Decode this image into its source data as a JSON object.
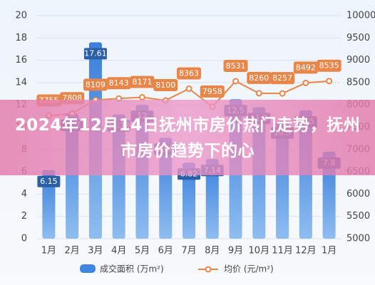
{
  "chart_data": {
    "type": "bar_line",
    "categories": [
      "1月",
      "2月",
      "3月",
      "4月",
      "5月",
      "6月",
      "7月",
      "8月",
      "9月",
      "10月",
      "11月",
      "12月",
      "1月"
    ],
    "series": [
      {
        "name": "成交面积 (万m²)",
        "color": "#3f86e0",
        "type": "bar",
        "values": [
          6.15,
          11.2,
          17.61,
          11.14,
          12,
          9.05,
          6.82,
          7.14,
          12.5,
          11.8,
          10.5,
          11.5,
          7.8
        ]
      },
      {
        "name": "均价 (元/m²)",
        "color": "#e8864a",
        "type": "line",
        "axis": "y2",
        "values": [
          7755,
          7808,
          8109,
          8143,
          8171,
          8100,
          8363,
          7958,
          8531,
          8260,
          8257,
          8492,
          8535
        ]
      }
    ],
    "ylim": [
      0,
      20
    ],
    "yticks": [
      0,
      2,
      4,
      6,
      8,
      10,
      12,
      14,
      16,
      18,
      20
    ],
    "y2lim": [
      5000,
      10000
    ],
    "y2ticks": [
      5000,
      5500,
      6000,
      6500,
      7000,
      7500,
      8000,
      8500,
      9000,
      9500,
      10000
    ],
    "grid": true
  },
  "banner": {
    "title": "2024年12月14日抚州市房价热门走势，抚州市房价趋势下的心"
  }
}
